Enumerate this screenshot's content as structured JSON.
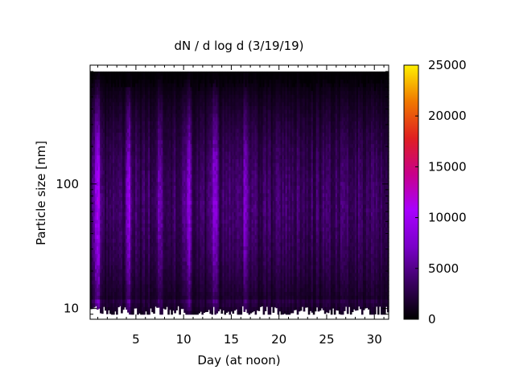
{
  "chart_data": {
    "type": "heatmap",
    "title": "dN / d log d (3/19/19)",
    "xlabel": "Day (at noon)",
    "ylabel": "Particle size [nm]",
    "x_range": [
      0.2,
      31.5
    ],
    "x_ticks": [
      5,
      10,
      15,
      20,
      25,
      30
    ],
    "y_scale": "log",
    "y_range": [
      8.2,
      900
    ],
    "y_ticks": [
      10,
      100
    ],
    "colorbar": {
      "range": [
        0,
        25000
      ],
      "ticks": [
        0,
        5000,
        10000,
        15000,
        20000,
        25000
      ],
      "palette": [
        "#000000",
        "#3a0060",
        "#7a00c8",
        "#a800ff",
        "#c8008a",
        "#e02020",
        "#f07800",
        "#fff000"
      ]
    },
    "data_extent": {
      "size_min_nm": 9,
      "size_max_nm": 800
    },
    "intensity_profile": {
      "description_values": "typical concentration 2000-6000 with peaks near 10000-13000",
      "peak_days": [
        1.0,
        4.3,
        7.5,
        10.5,
        13.3,
        16.5
      ],
      "peak_values": [
        13000,
        10500,
        9000,
        10000,
        12500,
        9500
      ]
    },
    "grid": false,
    "legend": "none"
  }
}
